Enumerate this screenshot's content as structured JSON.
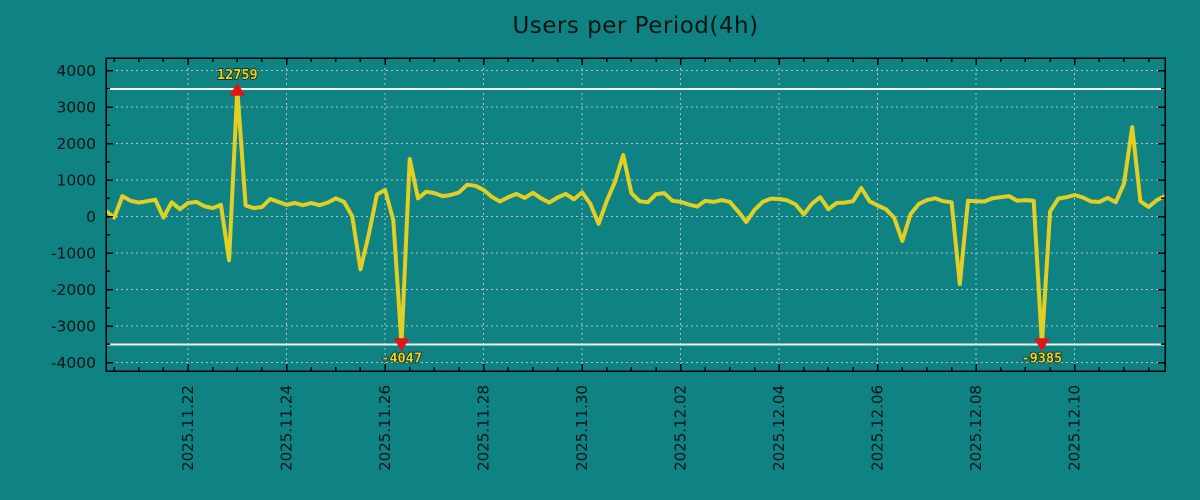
{
  "colors": {
    "background": "#0f8383",
    "line": "#e2cf23",
    "marker": "#e21313",
    "grid": "#cccccc",
    "clip_line": "#f2f2ea",
    "axis": "#000000",
    "text": "#0a1414",
    "annotation_text": "#e6d62c",
    "annotation_outline": "#1a1a05"
  },
  "chart_data": {
    "type": "line",
    "title": "Users per Period(4h)",
    "xlabel": "",
    "ylabel": "",
    "point_interval_hours": 4,
    "ylim": [
      -4000,
      4000
    ],
    "y_ticks": [
      -4000,
      -3000,
      -2000,
      -1000,
      0,
      1000,
      2000,
      3000,
      4000
    ],
    "y_minor_step": 500,
    "clip_value": 3500,
    "grid": true,
    "legend": null,
    "x_tick_labels": [
      "2025.11.22",
      "2025.11.24",
      "2025.11.26",
      "2025.11.28",
      "2025.11.30",
      "2025.12.02",
      "2025.12.04",
      "2025.12.06",
      "2025.12.08",
      "2025.12.10"
    ],
    "x_tick_indices": [
      10,
      22,
      34,
      46,
      58,
      70,
      82,
      94,
      106,
      118
    ],
    "x_minor_every": 3,
    "series": [
      {
        "name": "Users",
        "values": [
          150,
          -30,
          560,
          430,
          380,
          420,
          460,
          -30,
          390,
          200,
          370,
          400,
          280,
          230,
          320,
          -1200,
          12759,
          300,
          230,
          260,
          480,
          400,
          320,
          370,
          310,
          370,
          310,
          380,
          500,
          400,
          0,
          -1450,
          -500,
          600,
          730,
          -100,
          -4047,
          1575,
          500,
          680,
          640,
          560,
          590,
          660,
          870,
          840,
          730,
          540,
          410,
          530,
          620,
          510,
          650,
          500,
          380,
          520,
          620,
          470,
          660,
          350,
          -200,
          430,
          950,
          1685,
          640,
          420,
          390,
          610,
          640,
          430,
          400,
          330,
          270,
          430,
          400,
          450,
          400,
          140,
          -150,
          180,
          400,
          490,
          480,
          440,
          330,
          60,
          350,
          530,
          200,
          370,
          380,
          420,
          780,
          420,
          300,
          200,
          -30,
          -670,
          60,
          340,
          450,
          500,
          420,
          390,
          -1850,
          430,
          420,
          410,
          500,
          530,
          560,
          430,
          450,
          430,
          -9385,
          140,
          490,
          530,
          590,
          520,
          410,
          400,
          510,
          390,
          900,
          2450,
          420,
          260,
          450,
          560
        ]
      }
    ],
    "annotations": [
      {
        "index": 16,
        "value": 12759,
        "label": "12759",
        "direction": "up"
      },
      {
        "index": 36,
        "value": -4047,
        "label": "-4047",
        "direction": "down"
      },
      {
        "index": 114,
        "value": -9385,
        "label": "-9385",
        "direction": "down"
      }
    ]
  }
}
